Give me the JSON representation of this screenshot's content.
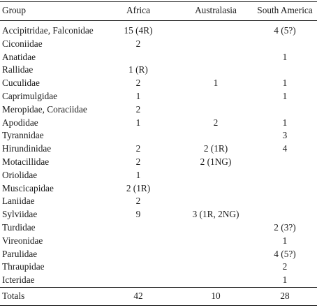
{
  "table": {
    "headers": [
      "Group",
      "Africa",
      "Australasia",
      "South America"
    ],
    "rows": [
      [
        "Accipitridae, Falconidae",
        "15 (4R)",
        "",
        "4 (5?)"
      ],
      [
        "Ciconiidae",
        "2",
        "",
        ""
      ],
      [
        "Anatidae",
        "",
        "",
        "1"
      ],
      [
        "Rallidae",
        "1 (R)",
        "",
        ""
      ],
      [
        "Cuculidae",
        "2",
        "1",
        "1"
      ],
      [
        "Caprimulgidae",
        "1",
        "",
        "1"
      ],
      [
        "Meropidae, Coraciidae",
        "2",
        "",
        ""
      ],
      [
        "Apodidae",
        "1",
        "2",
        "1"
      ],
      [
        "Tyrannidae",
        "",
        "",
        "3"
      ],
      [
        "Hirundinidae",
        "2",
        "2 (1R)",
        "4"
      ],
      [
        "Motacillidae",
        "2",
        "2 (1NG)",
        ""
      ],
      [
        "Oriolidae",
        "1",
        "",
        ""
      ],
      [
        "Muscicapidae",
        "2 (1R)",
        "",
        ""
      ],
      [
        "Laniidae",
        "2",
        "",
        ""
      ],
      [
        "Sylviidae",
        "9",
        "3 (1R, 2NG)",
        ""
      ],
      [
        "Turdidae",
        "",
        "",
        "2 (3?)"
      ],
      [
        "Vireonidae",
        "",
        "",
        "1"
      ],
      [
        "Parulidae",
        "",
        "",
        "4 (5?)"
      ],
      [
        "Thraupidae",
        "",
        "",
        "2"
      ],
      [
        "Icteridae",
        "",
        "",
        "1"
      ]
    ],
    "totals": [
      "Totals",
      "42",
      "10",
      "28"
    ]
  }
}
